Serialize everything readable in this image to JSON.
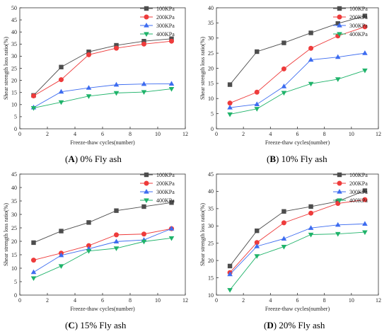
{
  "figure": {
    "series_styles": [
      {
        "name": "100KPa",
        "color": "#4d4d4d",
        "marker": "square"
      },
      {
        "name": "200KPa",
        "color": "#ee3b3b",
        "marker": "circle"
      },
      {
        "name": "300KPa",
        "color": "#3d6cf0",
        "marker": "triangle-up"
      },
      {
        "name": "400KPa",
        "color": "#1fb36a",
        "marker": "triangle-down"
      }
    ]
  },
  "panels": [
    {
      "letter": "A",
      "caption_text": "0% Fly ash"
    },
    {
      "letter": "B",
      "caption_text": "10% Fly ash"
    },
    {
      "letter": "C",
      "caption_text": "15% Fly ash"
    },
    {
      "letter": "D",
      "caption_text": "20% Fly ash"
    }
  ],
  "chart_data": [
    {
      "type": "line",
      "title": "",
      "xlabel": "Freeze-thaw cycles(number)",
      "ylabel": "Shear strength loss ratio(%)",
      "xlim": [
        0,
        12
      ],
      "ylim": [
        0,
        50
      ],
      "xticks": [
        0,
        2,
        4,
        6,
        8,
        10,
        12
      ],
      "yticks": [
        0,
        5,
        10,
        15,
        20,
        25,
        30,
        35,
        40,
        45,
        50
      ],
      "x": [
        1,
        3,
        5,
        7,
        9,
        11
      ],
      "grid": false,
      "legend": "top-right",
      "series": [
        {
          "name": "100KPa",
          "values": [
            13.8,
            25.5,
            31.8,
            34.5,
            36.2,
            37.2
          ]
        },
        {
          "name": "200KPa",
          "values": [
            13.6,
            20.3,
            30.6,
            33.3,
            35.0,
            36.2
          ]
        },
        {
          "name": "300KPa",
          "values": [
            8.8,
            15.3,
            16.9,
            18.2,
            18.5,
            18.6
          ]
        },
        {
          "name": "400KPa",
          "values": [
            8.6,
            11.0,
            13.5,
            14.8,
            15.2,
            16.5
          ]
        }
      ]
    },
    {
      "type": "line",
      "title": "",
      "xlabel": "Freeze-thaw cycles(number)",
      "ylabel": "Shear strength loss ratio(%)",
      "xlim": [
        0,
        12
      ],
      "ylim": [
        0,
        40
      ],
      "xticks": [
        0,
        2,
        4,
        6,
        8,
        10,
        12
      ],
      "yticks": [
        0,
        5,
        10,
        15,
        20,
        25,
        30,
        35,
        40
      ],
      "x": [
        1,
        3,
        5,
        7,
        9,
        11
      ],
      "grid": false,
      "legend": "top-right",
      "series": [
        {
          "name": "100KPa",
          "values": [
            14.6,
            25.5,
            28.4,
            31.7,
            34.8,
            37.3
          ]
        },
        {
          "name": "200KPa",
          "values": [
            8.5,
            12.1,
            19.8,
            26.6,
            30.7,
            33.7
          ]
        },
        {
          "name": "300KPa",
          "values": [
            7.0,
            8.1,
            14.0,
            22.8,
            23.7,
            25.0
          ]
        },
        {
          "name": "400KPa",
          "values": [
            4.8,
            6.6,
            11.9,
            14.9,
            16.4,
            19.3
          ]
        }
      ]
    },
    {
      "type": "line",
      "title": "",
      "xlabel": "Freeze-thaw cycles(number)",
      "ylabel": "Shear strength loss ratio(%)",
      "xlim": [
        0,
        12
      ],
      "ylim": [
        0,
        45
      ],
      "xticks": [
        0,
        2,
        4,
        6,
        8,
        10,
        12
      ],
      "yticks": [
        0,
        5,
        10,
        15,
        20,
        25,
        30,
        35,
        40,
        45
      ],
      "x": [
        1,
        3,
        5,
        7,
        9,
        11
      ],
      "grid": false,
      "legend": "top-right",
      "series": [
        {
          "name": "100KPa",
          "values": [
            19.5,
            23.8,
            27.0,
            31.4,
            32.9,
            34.4
          ]
        },
        {
          "name": "200KPa",
          "values": [
            13.0,
            15.6,
            18.4,
            22.4,
            22.7,
            24.7
          ]
        },
        {
          "name": "300KPa",
          "values": [
            8.5,
            14.8,
            17.2,
            19.9,
            20.5,
            24.7
          ]
        },
        {
          "name": "400KPa",
          "values": [
            6.3,
            10.8,
            16.4,
            17.4,
            19.9,
            21.2
          ]
        }
      ]
    },
    {
      "type": "line",
      "title": "",
      "xlabel": "Freeze-thaw cycles(number)",
      "ylabel": "Shear strength loss ratio(%)",
      "xlim": [
        0,
        12
      ],
      "ylim": [
        10,
        45
      ],
      "xticks": [
        0,
        2,
        4,
        6,
        8,
        10,
        12
      ],
      "yticks": [
        10,
        15,
        20,
        25,
        30,
        35,
        40,
        45
      ],
      "x": [
        1,
        3,
        5,
        7,
        9,
        11
      ],
      "grid": false,
      "legend": "top-right",
      "series": [
        {
          "name": "100KPa",
          "values": [
            18.4,
            28.6,
            34.2,
            35.6,
            37.1,
            40.2
          ]
        },
        {
          "name": "200KPa",
          "values": [
            16.5,
            25.2,
            30.9,
            33.7,
            36.5,
            37.6
          ]
        },
        {
          "name": "300KPa",
          "values": [
            16.0,
            24.1,
            26.3,
            29.4,
            30.3,
            30.6
          ]
        },
        {
          "name": "400KPa",
          "values": [
            11.5,
            21.3,
            24.0,
            27.5,
            27.7,
            28.2
          ]
        }
      ]
    }
  ]
}
